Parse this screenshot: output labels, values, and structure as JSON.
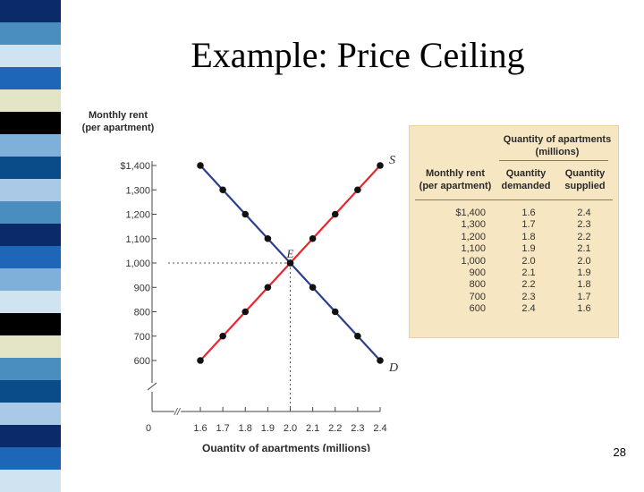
{
  "slide": {
    "title": "Example: Price Ceiling",
    "page_number": "28"
  },
  "colors": {
    "supply": "#e8262d",
    "demand": "#2b3f8f",
    "strip": [
      "#0a2a6a",
      "#4a8ec0",
      "#cfe3f0",
      "#1e66b8",
      "#e4e4c6",
      "#000000",
      "#7fb0da",
      "#0a4b8a",
      "#a9c9e6"
    ]
  },
  "chart_data": {
    "type": "line",
    "ylabel": "Monthly rent\n(per apartment)",
    "xlabel": "Quantity of apartments (millions)",
    "x_ticks": [
      "0",
      "1.6",
      "1.7",
      "1.8",
      "1.9",
      "2.0",
      "2.1",
      "2.2",
      "2.3",
      "2.4"
    ],
    "y_ticks": [
      "600",
      "700",
      "800",
      "900",
      "1,000",
      "1,100",
      "1,200",
      "1,300",
      "$1,400"
    ],
    "xlim": [
      1.6,
      2.4
    ],
    "ylim": [
      600,
      1400
    ],
    "series": [
      {
        "name": "S",
        "x": [
          1.6,
          1.7,
          1.8,
          1.9,
          2.0,
          2.1,
          2.2,
          2.3,
          2.4
        ],
        "y": [
          600,
          700,
          800,
          900,
          1000,
          1100,
          1200,
          1300,
          1400
        ]
      },
      {
        "name": "D",
        "x": [
          1.6,
          1.7,
          1.8,
          1.9,
          2.0,
          2.1,
          2.2,
          2.3,
          2.4
        ],
        "y": [
          1400,
          1300,
          1200,
          1100,
          1000,
          900,
          800,
          700,
          600
        ]
      }
    ],
    "equilibrium": {
      "label": "E",
      "x": 2.0,
      "y": 1000
    },
    "axis_break": "//"
  },
  "table": {
    "header_group": "Quantity of apartments\n(millions)",
    "col_rent": "Monthly rent\n(per apartment)",
    "col_demanded": "Quantity\ndemanded",
    "col_supplied": "Quantity\nsupplied",
    "rows": [
      {
        "rent": "$1,400",
        "demanded": "1.6",
        "supplied": "2.4"
      },
      {
        "rent": "1,300",
        "demanded": "1.7",
        "supplied": "2.3"
      },
      {
        "rent": "1,200",
        "demanded": "1.8",
        "supplied": "2.2"
      },
      {
        "rent": "1,100",
        "demanded": "1.9",
        "supplied": "2.1"
      },
      {
        "rent": "1,000",
        "demanded": "2.0",
        "supplied": "2.0"
      },
      {
        "rent": "900",
        "demanded": "2.1",
        "supplied": "1.9"
      },
      {
        "rent": "800",
        "demanded": "2.2",
        "supplied": "1.8"
      },
      {
        "rent": "700",
        "demanded": "2.3",
        "supplied": "1.7"
      },
      {
        "rent": "600",
        "demanded": "2.4",
        "supplied": "1.6"
      }
    ]
  }
}
